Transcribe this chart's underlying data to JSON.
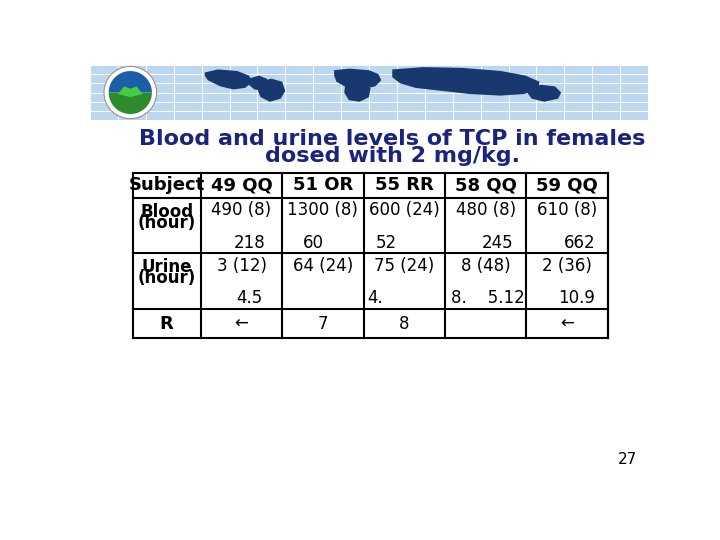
{
  "title_line1": "Blood and urine levels of TCP in females",
  "title_line2": "dosed with 2 mg/kg.",
  "page_number": "27",
  "header_bg": "#bdd8ee",
  "header_map_color": "#1a3870",
  "title_color": "#1a237e",
  "title_fontsize": 16,
  "table_header_fontsize": 13,
  "table_body_fontsize": 12,
  "background_color": "#ffffff",
  "col_headers": [
    "Subject",
    "49 QQ",
    "51 OR",
    "55 RR",
    "58 QQ",
    "59 QQ"
  ],
  "blood_vals": [
    "490 (8)",
    "1300 (8)",
    "600 (24)",
    "480 (8)",
    "610 (8)"
  ],
  "blood_sub": [
    "218",
    "60",
    "52",
    "245",
    "662"
  ],
  "urine_vals": [
    "3 (12)",
    "64 (24)",
    "75 (24)",
    "8 (48)",
    "2 (36)"
  ],
  "urine_sub": [
    "4.5",
    "",
    "4.",
    "8.    5.12",
    "10.9"
  ],
  "r_vals": [
    "←",
    "7",
    "8",
    "",
    "←"
  ]
}
